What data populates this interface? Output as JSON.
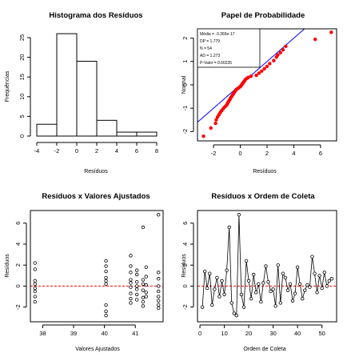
{
  "chart_data": [
    {
      "id": "hist",
      "type": "bar",
      "title": "Histograma dos Resíduos",
      "xlabel": "Resíduos",
      "ylabel": "Frequências",
      "xlim": [
        -4,
        8
      ],
      "ylim": [
        0,
        25
      ],
      "xticks": [
        -4,
        -2,
        0,
        2,
        4,
        6,
        8
      ],
      "yticks": [
        0,
        5,
        10,
        15,
        20,
        25
      ],
      "bins": [
        {
          "from": -4,
          "to": -2,
          "count": 3
        },
        {
          "from": -2,
          "to": 0,
          "count": 26
        },
        {
          "from": 0,
          "to": 2,
          "count": 19
        },
        {
          "from": 2,
          "to": 4,
          "count": 4
        },
        {
          "from": 4,
          "to": 6,
          "count": 1
        },
        {
          "from": 6,
          "to": 8,
          "count": 1
        }
      ]
    },
    {
      "id": "qq",
      "type": "scatter",
      "title": "Papel de Probabilidade",
      "xlabel": "Resíduos",
      "ylabel": "Normal",
      "xlim": [
        -3.2,
        7.2
      ],
      "ylim": [
        -2.4,
        2.4
      ],
      "xticks": [
        -2,
        0,
        2,
        4,
        6
      ],
      "yticks": [
        -2,
        -1,
        0,
        1,
        2
      ],
      "point_color": "#ff0000",
      "line_color": "#0000ff",
      "line": {
        "intercept": 0,
        "slope": 0.5
      },
      "stats": [
        "Média = -3.366e-17",
        "DP = 1.779",
        "N = 54",
        "AD = 1.273",
        "P-Valor = 0.00235"
      ],
      "points": [
        {
          "x": -2.75,
          "y": -2.2
        },
        {
          "x": -2.2,
          "y": -1.85
        },
        {
          "x": -1.85,
          "y": -1.65
        },
        {
          "x": -1.8,
          "y": -1.5
        },
        {
          "x": -1.7,
          "y": -1.38
        },
        {
          "x": -1.6,
          "y": -1.28
        },
        {
          "x": -1.5,
          "y": -1.19
        },
        {
          "x": -1.4,
          "y": -1.11
        },
        {
          "x": -1.3,
          "y": -1.04
        },
        {
          "x": -1.2,
          "y": -0.97
        },
        {
          "x": -1.1,
          "y": -0.91
        },
        {
          "x": -1.0,
          "y": -0.85
        },
        {
          "x": -0.95,
          "y": -0.79
        },
        {
          "x": -0.9,
          "y": -0.74
        },
        {
          "x": -0.85,
          "y": -0.69
        },
        {
          "x": -0.8,
          "y": -0.64
        },
        {
          "x": -0.75,
          "y": -0.59
        },
        {
          "x": -0.7,
          "y": -0.54
        },
        {
          "x": -0.65,
          "y": -0.5
        },
        {
          "x": -0.6,
          "y": -0.45
        },
        {
          "x": -0.55,
          "y": -0.41
        },
        {
          "x": -0.5,
          "y": -0.37
        },
        {
          "x": -0.45,
          "y": -0.32
        },
        {
          "x": -0.4,
          "y": -0.28
        },
        {
          "x": -0.35,
          "y": -0.24
        },
        {
          "x": -0.3,
          "y": -0.2
        },
        {
          "x": -0.2,
          "y": -0.16
        },
        {
          "x": -0.1,
          "y": -0.12
        },
        {
          "x": 0.0,
          "y": -0.08
        },
        {
          "x": 0.05,
          "y": -0.04
        },
        {
          "x": 0.1,
          "y": 0.0
        },
        {
          "x": 0.15,
          "y": 0.04
        },
        {
          "x": 0.2,
          "y": 0.08
        },
        {
          "x": 0.25,
          "y": 0.12
        },
        {
          "x": 0.3,
          "y": 0.16
        },
        {
          "x": 0.35,
          "y": 0.2
        },
        {
          "x": 0.4,
          "y": 0.24
        },
        {
          "x": 0.5,
          "y": 0.28
        },
        {
          "x": 0.6,
          "y": 0.32
        },
        {
          "x": 0.8,
          "y": 0.37
        },
        {
          "x": 1.2,
          "y": 0.41
        },
        {
          "x": 1.4,
          "y": 0.5
        },
        {
          "x": 1.6,
          "y": 0.59
        },
        {
          "x": 1.8,
          "y": 0.69
        },
        {
          "x": 2.0,
          "y": 0.79
        },
        {
          "x": 2.2,
          "y": 0.91
        },
        {
          "x": 2.5,
          "y": 1.04
        },
        {
          "x": 2.7,
          "y": 1.19
        },
        {
          "x": 2.8,
          "y": 1.28
        },
        {
          "x": 3.0,
          "y": 1.38
        },
        {
          "x": 3.2,
          "y": 1.5
        },
        {
          "x": 3.4,
          "y": 1.65
        },
        {
          "x": 5.6,
          "y": 1.95
        },
        {
          "x": 6.8,
          "y": 2.25
        }
      ]
    },
    {
      "id": "fitted",
      "type": "scatter",
      "title": "Resíduos x Valores Ajustados",
      "xlabel": "Valores Ajustados",
      "ylabel": "Resíduos",
      "xlim": [
        37.6,
        41.9
      ],
      "ylim": [
        -3.4,
        7.2
      ],
      "xticks": [
        38,
        39,
        40,
        41
      ],
      "yticks": [
        -2,
        0,
        2,
        4,
        6
      ],
      "ref_line": {
        "y": 0,
        "color": "#ff0000",
        "dash": true
      },
      "points": [
        {
          "x": 37.75,
          "y": 2.2
        },
        {
          "x": 37.75,
          "y": 1.6
        },
        {
          "x": 37.75,
          "y": 0.5
        },
        {
          "x": 37.75,
          "y": 0.2
        },
        {
          "x": 37.75,
          "y": -0.2
        },
        {
          "x": 37.75,
          "y": -0.5
        },
        {
          "x": 37.75,
          "y": -1.0
        },
        {
          "x": 37.75,
          "y": -1.5
        },
        {
          "x": 40.05,
          "y": 2.4
        },
        {
          "x": 40.05,
          "y": 1.9
        },
        {
          "x": 40.05,
          "y": 1.4
        },
        {
          "x": 40.05,
          "y": 0.8
        },
        {
          "x": 40.05,
          "y": 0.5
        },
        {
          "x": 40.05,
          "y": 0.2
        },
        {
          "x": 40.05,
          "y": -1.8
        },
        {
          "x": 40.05,
          "y": -2.4
        },
        {
          "x": 40.05,
          "y": -2.8
        },
        {
          "x": 40.85,
          "y": 2.9
        },
        {
          "x": 40.85,
          "y": 1.9
        },
        {
          "x": 40.85,
          "y": 1.3
        },
        {
          "x": 40.85,
          "y": 0.6
        },
        {
          "x": 40.85,
          "y": 0.3
        },
        {
          "x": 40.85,
          "y": -0.1
        },
        {
          "x": 40.85,
          "y": -0.7
        },
        {
          "x": 40.85,
          "y": -1.2
        },
        {
          "x": 40.85,
          "y": -1.6
        },
        {
          "x": 41.05,
          "y": 1.5
        },
        {
          "x": 41.05,
          "y": 1.1
        },
        {
          "x": 41.05,
          "y": 0.4
        },
        {
          "x": 41.05,
          "y": 0.0
        },
        {
          "x": 41.05,
          "y": -0.3
        },
        {
          "x": 41.05,
          "y": -0.8
        },
        {
          "x": 41.05,
          "y": -1.3
        },
        {
          "x": 41.25,
          "y": 5.6
        },
        {
          "x": 41.25,
          "y": 0.6
        },
        {
          "x": 41.25,
          "y": 0.2
        },
        {
          "x": 41.25,
          "y": -0.4
        },
        {
          "x": 41.25,
          "y": -1.1
        },
        {
          "x": 41.25,
          "y": -1.5
        },
        {
          "x": 41.25,
          "y": -1.9
        },
        {
          "x": 41.35,
          "y": 1.8
        },
        {
          "x": 41.35,
          "y": 0.9
        },
        {
          "x": 41.35,
          "y": 0.1
        },
        {
          "x": 41.35,
          "y": -0.6
        },
        {
          "x": 41.35,
          "y": -1.0
        },
        {
          "x": 41.75,
          "y": 6.8
        },
        {
          "x": 41.75,
          "y": 1.3
        },
        {
          "x": 41.75,
          "y": 0.7
        },
        {
          "x": 41.75,
          "y": 0.0
        },
        {
          "x": 41.75,
          "y": -0.5
        },
        {
          "x": 41.75,
          "y": -1.0
        },
        {
          "x": 41.75,
          "y": -1.4
        },
        {
          "x": 41.75,
          "y": -1.8
        },
        {
          "x": 41.75,
          "y": -2.1
        }
      ]
    },
    {
      "id": "order",
      "type": "line",
      "title": "Resíduos x Ordem de Coleta",
      "xlabel": "Ordem de Coleta",
      "ylabel": "Resíduos",
      "xlim": [
        -1,
        56
      ],
      "ylim": [
        -3.4,
        7.2
      ],
      "xticks": [
        0,
        10,
        20,
        30,
        40,
        50
      ],
      "yticks": [
        -2,
        0,
        2,
        4,
        6
      ],
      "ref_line": {
        "y": 0,
        "color": "#ff0000",
        "dash": true
      },
      "x": [
        1,
        2,
        3,
        4,
        5,
        6,
        7,
        8,
        9,
        10,
        11,
        12,
        13,
        14,
        15,
        16,
        17,
        18,
        19,
        20,
        21,
        22,
        23,
        24,
        25,
        26,
        27,
        28,
        29,
        30,
        31,
        32,
        33,
        34,
        35,
        36,
        37,
        38,
        39,
        40,
        41,
        42,
        43,
        44,
        45,
        46,
        47,
        48,
        49,
        50,
        51,
        52,
        53,
        54
      ],
      "y": [
        -2.0,
        1.4,
        -0.2,
        1.2,
        -1.8,
        -0.3,
        0.8,
        -1.0,
        0.5,
        -0.8,
        1.5,
        5.6,
        -1.6,
        -2.6,
        -2.8,
        6.8,
        -0.8,
        -2.0,
        2.4,
        0.5,
        -1.2,
        1.1,
        -0.6,
        0.2,
        -1.5,
        0.3,
        1.9,
        0.4,
        -0.5,
        -0.3,
        -1.9,
        2.0,
        -1.6,
        1.2,
        0.8,
        -0.4,
        0.2,
        -1.4,
        -0.7,
        1.8,
        0.2,
        -1.2,
        -0.4,
        0.1,
        -0.1,
        2.8,
        1.2,
        -0.6,
        1.0,
        -0.2,
        1.3,
        0.0,
        0.5,
        0.7
      ]
    }
  ]
}
